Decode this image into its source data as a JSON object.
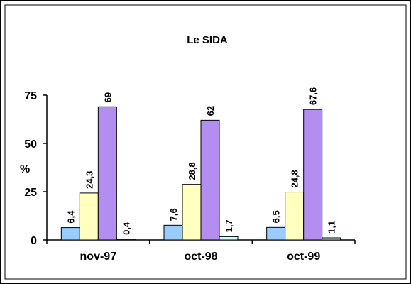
{
  "chart_data": {
    "type": "bar",
    "title": "Le SIDA",
    "ylabel": "%",
    "xlabel": "",
    "ylim": [
      0,
      75
    ],
    "yticks": [
      0,
      25,
      50,
      75
    ],
    "categories": [
      "nov-97",
      "oct-98",
      "oct-99"
    ],
    "series": [
      {
        "color": "#99ccff",
        "values": [
          6.4,
          7.6,
          6.5
        ],
        "labels": [
          "6,4",
          "7,6",
          "6,5"
        ]
      },
      {
        "color": "#ffffc0",
        "values": [
          24.3,
          28.8,
          24.8
        ],
        "labels": [
          "24,3",
          "28,8",
          "24,8"
        ]
      },
      {
        "color": "#b18ef0",
        "values": [
          69,
          62,
          67.6
        ],
        "labels": [
          "69",
          "62",
          "67,6"
        ]
      },
      {
        "color": "#ccffff",
        "values": [
          0.4,
          1.7,
          1.1
        ],
        "labels": [
          "0,4",
          "1,7",
          "1,1"
        ]
      }
    ],
    "grid": false,
    "legend": "none"
  }
}
